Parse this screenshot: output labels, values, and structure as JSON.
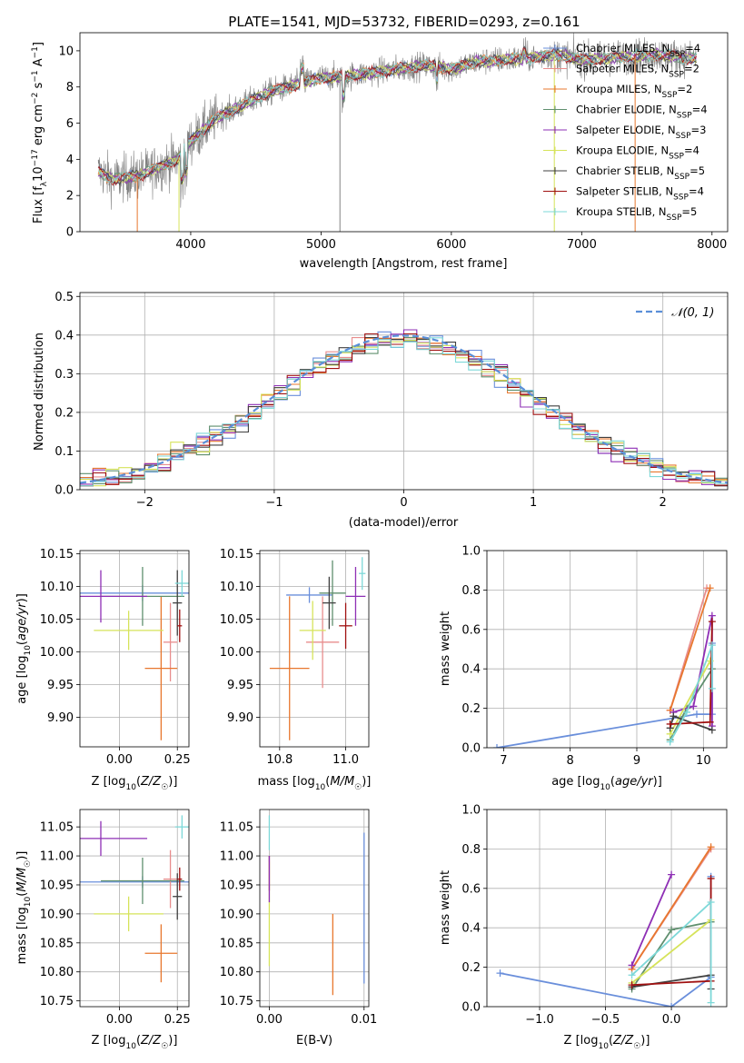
{
  "page": {
    "title": "PLATE=1541, MJD=53732, FIBERID=0293, z=0.161"
  },
  "colors": {
    "Chabrier MILES": "#6a8fdb",
    "Salpeter MILES": "#e88d8d",
    "Kroupa MILES": "#e8772e",
    "Chabrier ELODIE": "#5f8f6e",
    "Salpeter ELODIE": "#8e2fb5",
    "Kroupa ELODIE": "#d6e35a",
    "Chabrier STELIB": "#404040",
    "Salpeter STELIB": "#a01010",
    "Kroupa STELIB": "#7dd8d8",
    "observed": "#808080",
    "normal": "#5a8fd8"
  },
  "chart_data": [
    {
      "id": "spectrum",
      "type": "line",
      "title": "PLATE=1541, MJD=53732, FIBERID=0293, z=0.161",
      "xlabel": "wavelength [Angstrom, rest frame]",
      "ylabel_parts": [
        "Flux [f",
        "λ",
        "10",
        "−17",
        " erg cm",
        "−2",
        " s",
        "−1",
        " A",
        "−1",
        "]"
      ],
      "xlim": [
        3150,
        8120
      ],
      "ylim": [
        0,
        11
      ],
      "xticks": [
        4000,
        5000,
        6000,
        7000,
        8000
      ],
      "yticks": [
        0,
        2,
        4,
        6,
        8,
        10
      ],
      "grid": false,
      "legend_position": "right",
      "legend": [
        {
          "model": "Chabrier MILES",
          "n": "4"
        },
        {
          "model": "Salpeter MILES",
          "n": "2"
        },
        {
          "model": "Kroupa MILES",
          "n": "2"
        },
        {
          "model": "Chabrier ELODIE",
          "n": "4"
        },
        {
          "model": "Salpeter ELODIE",
          "n": "3"
        },
        {
          "model": "Kroupa ELODIE",
          "n": "4"
        },
        {
          "model": "Chabrier STELIB",
          "n": "5"
        },
        {
          "model": "Salpeter STELIB",
          "n": "4"
        },
        {
          "model": "Kroupa STELIB",
          "n": "5"
        }
      ],
      "continuum_x": [
        3300,
        3400,
        3500,
        3600,
        3700,
        3800,
        3900,
        4000,
        4200,
        4400,
        4600,
        4800,
        5000,
        5200,
        5400,
        5600,
        5800,
        6000,
        6200,
        6400,
        6600,
        6800,
        7000,
        7200,
        7400,
        7600,
        7800
      ],
      "continuum_y": [
        3.3,
        2.9,
        3.0,
        3.1,
        3.4,
        3.7,
        4.0,
        5.0,
        6.3,
        7.0,
        7.7,
        8.1,
        8.5,
        8.6,
        8.8,
        9.0,
        9.2,
        9.0,
        9.4,
        9.5,
        9.6,
        9.8,
        9.5,
        9.6,
        9.7,
        9.8,
        9.6
      ]
    },
    {
      "id": "residuals",
      "type": "line",
      "xlabel": "(data-model)/error",
      "ylabel": "Normed distribution",
      "xlim": [
        -2.5,
        2.5
      ],
      "ylim": [
        0,
        0.51
      ],
      "xticks": [
        -2,
        -1,
        0,
        1,
        2
      ],
      "yticks": [
        0.0,
        0.1,
        0.2,
        0.3,
        0.4,
        0.5
      ],
      "grid": true,
      "legend_position": "top-right",
      "legend": [
        "𝒩(0, 1)"
      ]
    },
    {
      "id": "age_vs_Z",
      "type": "scatter",
      "xlabel": "Z [log10(Z/Z☉)]",
      "ylabel": "age  [log10(age/yr)]",
      "xlim": [
        -0.17,
        0.3
      ],
      "ylim": [
        9.855,
        10.155
      ],
      "xticks": [
        0.0,
        0.25
      ],
      "yticks": [
        9.9,
        9.95,
        10.0,
        10.05,
        10.1,
        10.15
      ],
      "grid": true,
      "points": [
        {
          "model": "Chabrier MILES",
          "x": 0.1,
          "y": 10.09,
          "xerr": 0.28,
          "yerr": 0.012
        },
        {
          "model": "Salpeter MILES",
          "x": 0.22,
          "y": 10.015,
          "xerr": 0.03,
          "yerr": 0.06
        },
        {
          "model": "Kroupa MILES",
          "x": 0.18,
          "y": 9.975,
          "xerr": 0.07,
          "yerr": 0.11
        },
        {
          "model": "Chabrier ELODIE",
          "x": 0.1,
          "y": 10.085,
          "xerr": 0.18,
          "yerr": 0.045
        },
        {
          "model": "Salpeter ELODIE",
          "x": -0.08,
          "y": 10.085,
          "xerr": 0.2,
          "yerr": 0.04
        },
        {
          "model": "Kroupa ELODIE",
          "x": 0.04,
          "y": 10.033,
          "xerr": 0.15,
          "yerr": 0.03
        },
        {
          "model": "Chabrier STELIB",
          "x": 0.25,
          "y": 10.075,
          "xerr": 0.02,
          "yerr": 0.05
        },
        {
          "model": "Salpeter STELIB",
          "x": 0.26,
          "y": 10.04,
          "xerr": 0.01,
          "yerr": 0.025
        },
        {
          "model": "Kroupa STELIB",
          "x": 0.27,
          "y": 10.105,
          "xerr": 0.03,
          "yerr": 0.02
        }
      ]
    },
    {
      "id": "age_vs_mass",
      "type": "scatter",
      "xlabel": "mass [log10(M/M☉)]",
      "ylabel": "",
      "xlim": [
        10.74,
        11.07
      ],
      "ylim": [
        9.855,
        10.155
      ],
      "xticks": [
        10.8,
        11.0
      ],
      "yticks": [
        9.9,
        9.95,
        10.0,
        10.05,
        10.1,
        10.15
      ],
      "grid": true,
      "points": [
        {
          "model": "Chabrier MILES",
          "x": 10.89,
          "y": 10.087,
          "xerr": 0.07,
          "yerr": 0.012
        },
        {
          "model": "Salpeter MILES",
          "x": 10.93,
          "y": 10.015,
          "xerr": 0.05,
          "yerr": 0.07
        },
        {
          "model": "Kroupa MILES",
          "x": 10.83,
          "y": 9.975,
          "xerr": 0.06,
          "yerr": 0.11
        },
        {
          "model": "Chabrier ELODIE",
          "x": 10.96,
          "y": 10.09,
          "xerr": 0.04,
          "yerr": 0.05
        },
        {
          "model": "Salpeter ELODIE",
          "x": 11.03,
          "y": 10.085,
          "xerr": 0.03,
          "yerr": 0.045
        },
        {
          "model": "Kroupa ELODIE",
          "x": 10.9,
          "y": 10.033,
          "xerr": 0.04,
          "yerr": 0.045
        },
        {
          "model": "Chabrier STELIB",
          "x": 10.95,
          "y": 10.075,
          "xerr": 0.02,
          "yerr": 0.04
        },
        {
          "model": "Salpeter STELIB",
          "x": 11.0,
          "y": 10.04,
          "xerr": 0.02,
          "yerr": 0.035
        },
        {
          "model": "Kroupa STELIB",
          "x": 11.05,
          "y": 10.12,
          "xerr": 0.01,
          "yerr": 0.025
        }
      ]
    },
    {
      "id": "weight_vs_age",
      "type": "line",
      "xlabel": "age  [log10(age/yr)]",
      "ylabel": "mass weight",
      "xlim": [
        6.75,
        10.35
      ],
      "ylim": [
        0,
        1.0
      ],
      "xticks": [
        7,
        8,
        9,
        10
      ],
      "yticks": [
        0.0,
        0.2,
        0.4,
        0.6,
        0.8,
        1.0
      ],
      "grid": true,
      "series": [
        {
          "model": "Chabrier MILES",
          "points": [
            [
              6.9,
              0.0
            ],
            [
              9.9,
              0.17
            ],
            [
              10.13,
              0.17
            ],
            [
              10.13,
              0.53
            ]
          ]
        },
        {
          "model": "Salpeter MILES",
          "points": [
            [
              9.5,
              0.19
            ],
            [
              10.05,
              0.81
            ]
          ]
        },
        {
          "model": "Kroupa MILES",
          "points": [
            [
              9.5,
              0.19
            ],
            [
              10.1,
              0.81
            ]
          ]
        },
        {
          "model": "Chabrier ELODIE",
          "points": [
            [
              9.5,
              0.04
            ],
            [
              9.75,
              0.2
            ],
            [
              10.13,
              0.4
            ]
          ]
        },
        {
          "model": "Salpeter ELODIE",
          "points": [
            [
              9.55,
              0.18
            ],
            [
              9.85,
              0.21
            ],
            [
              10.13,
              0.67
            ],
            [
              10.13,
              0.11
            ]
          ]
        },
        {
          "model": "Kroupa ELODIE",
          "points": [
            [
              9.5,
              0.07
            ],
            [
              10.1,
              0.44
            ]
          ]
        },
        {
          "model": "Chabrier STELIB",
          "points": [
            [
              9.5,
              0.1
            ],
            [
              9.55,
              0.16
            ],
            [
              10.13,
              0.09
            ]
          ]
        },
        {
          "model": "Salpeter STELIB",
          "points": [
            [
              9.5,
              0.12
            ],
            [
              10.1,
              0.13
            ],
            [
              10.13,
              0.64
            ]
          ]
        },
        {
          "model": "Kroupa STELIB",
          "points": [
            [
              9.5,
              0.03
            ],
            [
              9.75,
              0.18
            ],
            [
              10.13,
              0.52
            ],
            [
              10.13,
              0.3
            ]
          ]
        }
      ]
    },
    {
      "id": "mass_vs_Z",
      "type": "scatter",
      "xlabel": "Z [log10(Z/Z☉)]",
      "ylabel": "mass [log10(M/M☉)]",
      "xlim": [
        -0.17,
        0.3
      ],
      "ylim": [
        10.74,
        11.08
      ],
      "xticks": [
        0.0,
        0.25
      ],
      "yticks": [
        10.75,
        10.8,
        10.85,
        10.9,
        10.95,
        11.0,
        11.05
      ],
      "grid": true,
      "points": [
        {
          "model": "Chabrier MILES",
          "x": 0.1,
          "y": 10.955,
          "xerr": 0.28,
          "yerr": 0.01
        },
        {
          "model": "Salpeter MILES",
          "x": 0.22,
          "y": 10.96,
          "xerr": 0.03,
          "yerr": 0.05
        },
        {
          "model": "Kroupa MILES",
          "x": 0.18,
          "y": 10.832,
          "xerr": 0.07,
          "yerr": 0.05
        },
        {
          "model": "Chabrier ELODIE",
          "x": 0.1,
          "y": 10.957,
          "xerr": 0.18,
          "yerr": 0.04
        },
        {
          "model": "Salpeter ELODIE",
          "x": -0.08,
          "y": 11.03,
          "xerr": 0.2,
          "yerr": 0.03
        },
        {
          "model": "Kroupa ELODIE",
          "x": 0.04,
          "y": 10.9,
          "xerr": 0.15,
          "yerr": 0.03
        },
        {
          "model": "Chabrier STELIB",
          "x": 0.25,
          "y": 10.93,
          "xerr": 0.02,
          "yerr": 0.04
        },
        {
          "model": "Salpeter STELIB",
          "x": 0.26,
          "y": 10.96,
          "xerr": 0.01,
          "yerr": 0.02
        },
        {
          "model": "Kroupa STELIB",
          "x": 0.27,
          "y": 11.05,
          "xerr": 0.03,
          "yerr": 0.02
        }
      ]
    },
    {
      "id": "mass_vs_EBV",
      "type": "scatter",
      "xlabel": "E(B-V)",
      "ylabel": "",
      "xlim": [
        -0.001,
        0.0105
      ],
      "ylim": [
        10.74,
        11.08
      ],
      "xticks": [
        0.0,
        0.01
      ],
      "yticks": [
        10.75,
        10.8,
        10.85,
        10.9,
        10.95,
        11.0,
        11.05
      ],
      "grid": true,
      "points": [
        {
          "model": "Chabrier MILES",
          "x": 0.01,
          "y": 10.91,
          "xerr": 0.0,
          "yerr": 0.13
        },
        {
          "model": "Kroupa MILES",
          "x": 0.0067,
          "y": 10.83,
          "xerr": 0.0,
          "yerr": 0.07
        },
        {
          "model": "Salpeter STELIB",
          "x": 0.0,
          "y": 10.97,
          "xerr": 0.0,
          "yerr": 0.03
        },
        {
          "model": "Kroupa STELIB",
          "x": 0.0,
          "y": 11.04,
          "xerr": 0.0,
          "yerr": 0.03
        },
        {
          "model": "Kroupa ELODIE",
          "x": 0.0,
          "y": 10.9,
          "xerr": 0.0,
          "yerr": 0.09
        },
        {
          "model": "Salpeter ELODIE",
          "x": 0.0,
          "y": 10.96,
          "xerr": 0.0,
          "yerr": 0.04
        }
      ]
    },
    {
      "id": "weight_vs_Z",
      "type": "line",
      "xlabel": "Z [log10(Z/Z☉)]",
      "ylabel": "mass weight",
      "xlim": [
        -1.4,
        0.42
      ],
      "ylim": [
        0,
        1.0
      ],
      "xticks": [
        -1.0,
        -0.5,
        0.0
      ],
      "yticks": [
        0.0,
        0.2,
        0.4,
        0.6,
        0.8,
        1.0
      ],
      "grid": true,
      "series": [
        {
          "model": "Chabrier MILES",
          "points": [
            [
              -1.3,
              0.17
            ],
            [
              0.0,
              0.0
            ],
            [
              0.3,
              0.15
            ],
            [
              0.3,
              0.66
            ]
          ]
        },
        {
          "model": "Salpeter MILES",
          "points": [
            [
              -0.3,
              0.19
            ],
            [
              0.3,
              0.8
            ]
          ]
        },
        {
          "model": "Kroupa MILES",
          "points": [
            [
              -0.3,
              0.19
            ],
            [
              0.3,
              0.81
            ]
          ]
        },
        {
          "model": "Chabrier ELODIE",
          "points": [
            [
              -0.3,
              0.09
            ],
            [
              0.0,
              0.39
            ],
            [
              0.3,
              0.43
            ]
          ]
        },
        {
          "model": "Salpeter ELODIE",
          "points": [
            [
              -0.3,
              0.21
            ],
            [
              0.0,
              0.67
            ]
          ]
        },
        {
          "model": "Kroupa ELODIE",
          "points": [
            [
              -0.3,
              0.12
            ],
            [
              0.3,
              0.44
            ]
          ]
        },
        {
          "model": "Chabrier STELIB",
          "points": [
            [
              -0.3,
              0.1
            ],
            [
              0.3,
              0.16
            ],
            [
              0.3,
              0.09
            ]
          ]
        },
        {
          "model": "Salpeter STELIB",
          "points": [
            [
              -0.3,
              0.11
            ],
            [
              0.3,
              0.13
            ],
            [
              0.3,
              0.65
            ]
          ]
        },
        {
          "model": "Kroupa STELIB",
          "points": [
            [
              -0.3,
              0.16
            ],
            [
              0.3,
              0.53
            ],
            [
              0.3,
              0.02
            ]
          ]
        }
      ]
    }
  ]
}
